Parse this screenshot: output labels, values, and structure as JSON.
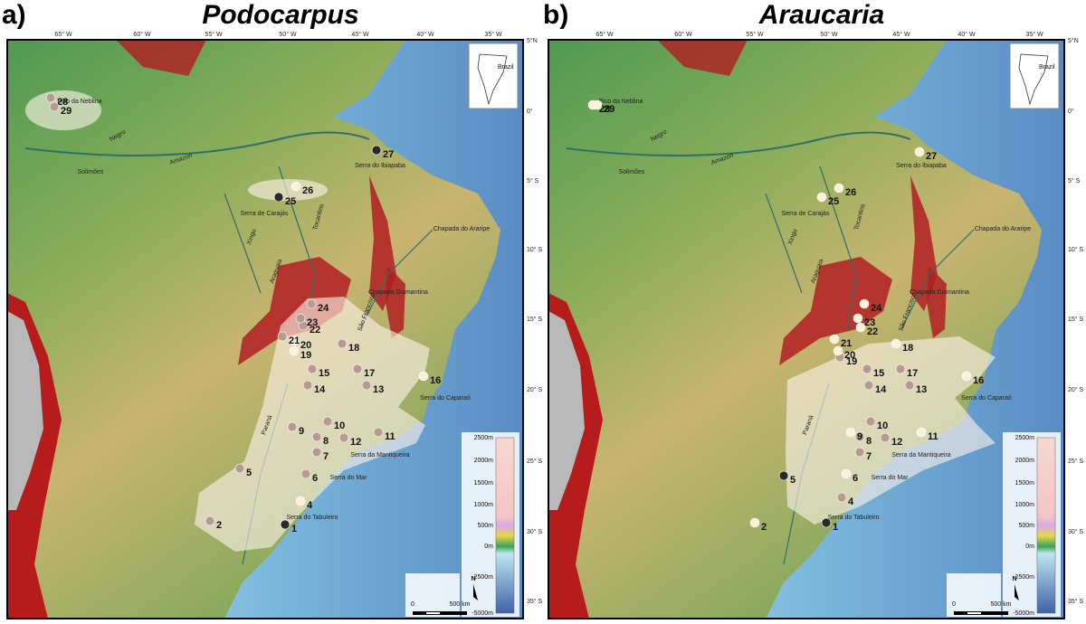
{
  "panels": [
    {
      "letter": "a)",
      "title": "Podocarpus",
      "site_labels": [
        1,
        2,
        4,
        5,
        6,
        7,
        8,
        9,
        10,
        11,
        12,
        13,
        14,
        15,
        16,
        17,
        18,
        19,
        20,
        21,
        22,
        23,
        24,
        25,
        26,
        27,
        28,
        29
      ]
    },
    {
      "letter": "b)",
      "title": "Araucaria",
      "site_labels": [
        1,
        2,
        4,
        5,
        6,
        7,
        8,
        9,
        10,
        11,
        12,
        13,
        14,
        15,
        16,
        17,
        18,
        19,
        20,
        21,
        22,
        23,
        24,
        25,
        26,
        27,
        28,
        29
      ]
    }
  ],
  "lon_labels": [
    "65° W",
    "60° W",
    "55° W",
    "50° W",
    "45° W",
    "40° W",
    "35° W"
  ],
  "lat_labels": [
    "5°N",
    "0°",
    "5° S",
    "10° S",
    "15° S",
    "20° S",
    "25° S",
    "30° S",
    "35° S"
  ],
  "places": [
    "Pico da Neblina",
    "Amazon",
    "Solimões",
    "Negro",
    "Xingu",
    "Tocantins",
    "Araguaia",
    "Serra de Carajás",
    "Serra do Ibiapaba",
    "Chapada do Araripe",
    "Chapada Diamantina",
    "São Francisco",
    "Paraná",
    "Serra do Caparaó",
    "Serra da Mantiqueira",
    "Serra do Mar",
    "Serra do Tabuleiro"
  ],
  "inset_label": "Brazil",
  "north": "N",
  "scale": [
    "0",
    "500 km"
  ],
  "elevation_labels": [
    "2500m",
    "2000m",
    "1500m",
    "1000m",
    "500m",
    "0m",
    "-2500m",
    "-5000m"
  ]
}
